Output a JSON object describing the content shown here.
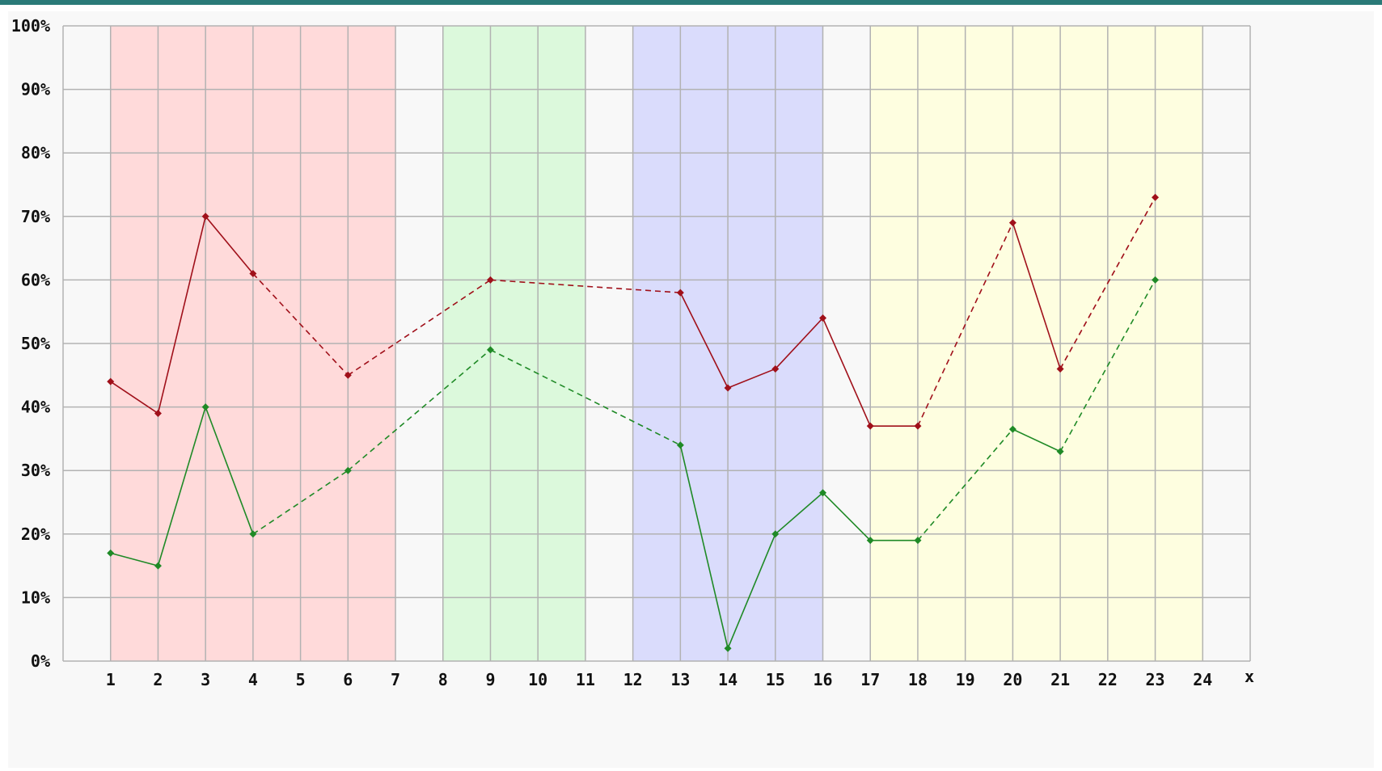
{
  "colors": {
    "top_bar": "#2a7a78",
    "background": "#f8f8f8",
    "grid": "#b2b2b2",
    "series_red": "#a0101a",
    "series_green": "#1f8a26",
    "band_red": "#ffdada",
    "band_green": "#dcf9dc",
    "band_blue": "#dadcfc",
    "band_yellow": "#fefee0"
  },
  "chart_data": {
    "type": "line",
    "xlabel": "x",
    "ylabel": "",
    "xlim": [
      0,
      25
    ],
    "ylim": [
      0,
      100
    ],
    "x_ticks": [
      "1",
      "2",
      "3",
      "4",
      "5",
      "6",
      "7",
      "8",
      "9",
      "10",
      "11",
      "12",
      "13",
      "14",
      "15",
      "16",
      "17",
      "18",
      "19",
      "20",
      "21",
      "22",
      "23",
      "24"
    ],
    "y_ticks": [
      "0%",
      "10%",
      "20%",
      "30%",
      "40%",
      "50%",
      "60%",
      "70%",
      "80%",
      "90%",
      "100%"
    ],
    "grid": true,
    "bands": [
      {
        "from": 1,
        "to": 7,
        "color": "#ffdada"
      },
      {
        "from": 8,
        "to": 11,
        "color": "#dcf9dc"
      },
      {
        "from": 12,
        "to": 16,
        "color": "#dadcfc"
      },
      {
        "from": 17,
        "to": 24,
        "color": "#fefee0"
      }
    ],
    "series": [
      {
        "color": "#a0101a",
        "points": [
          [
            1,
            44
          ],
          [
            2,
            39
          ],
          [
            3,
            70
          ],
          [
            4,
            61
          ],
          [
            6,
            45
          ],
          [
            9,
            60
          ],
          [
            13,
            58
          ],
          [
            14,
            43
          ],
          [
            15,
            46
          ],
          [
            16,
            54
          ],
          [
            17,
            37
          ],
          [
            18,
            37
          ],
          [
            20,
            69
          ],
          [
            21,
            46
          ],
          [
            23,
            73
          ]
        ],
        "segment_styles": [
          "solid",
          "solid",
          "solid",
          "dashed",
          "dashed",
          "dashed",
          "solid",
          "solid",
          "solid",
          "solid",
          "solid",
          "dashed",
          "solid",
          "dashed"
        ]
      },
      {
        "color": "#1f8a26",
        "points": [
          [
            1,
            17
          ],
          [
            2,
            15
          ],
          [
            3,
            40
          ],
          [
            4,
            20
          ],
          [
            6,
            30
          ],
          [
            9,
            49
          ],
          [
            13,
            34
          ],
          [
            14,
            2
          ],
          [
            15,
            20
          ],
          [
            16,
            26.5
          ],
          [
            17,
            19
          ],
          [
            18,
            19
          ],
          [
            20,
            36.5
          ],
          [
            21,
            33
          ],
          [
            23,
            60
          ]
        ],
        "segment_styles": [
          "solid",
          "solid",
          "solid",
          "dashed",
          "dashed",
          "dashed",
          "solid",
          "solid",
          "solid",
          "solid",
          "solid",
          "dashed",
          "solid",
          "dashed"
        ]
      }
    ]
  }
}
